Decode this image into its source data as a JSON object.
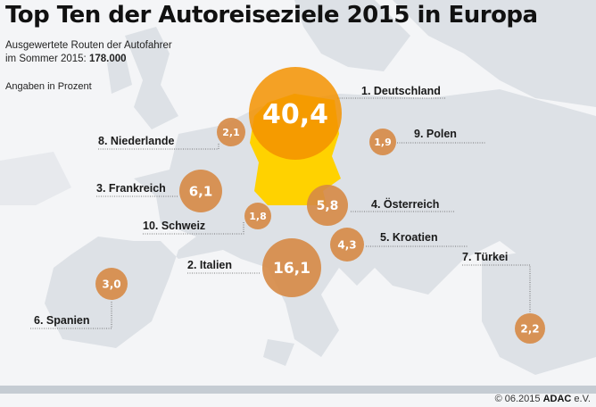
{
  "title": "Top Ten der Autoreiseziele 2015 in Europa",
  "subtitle_line1": "Ausgewertete Routen der Autofahrer",
  "subtitle_line2_prefix": "im Sommer 2015: ",
  "subtitle_total": "178.000",
  "unit_note": "Angaben in Prozent",
  "colors": {
    "bubble": "#d68a45",
    "top_bubble": "#f39200",
    "germany": "#ffd200",
    "land": "#dde1e6",
    "sea": "#f4f5f7"
  },
  "destinations": [
    {
      "label": "1. Deutschland",
      "value": "40,4"
    },
    {
      "label": "2. Italien",
      "value": "16,1"
    },
    {
      "label": "3. Frankreich",
      "value": "6,1"
    },
    {
      "label": "4. Österreich",
      "value": "5,8"
    },
    {
      "label": "5. Kroatien",
      "value": "4,3"
    },
    {
      "label": "6. Spanien",
      "value": "3,0"
    },
    {
      "label": "7. Türkei",
      "value": "2,2"
    },
    {
      "label": "8. Niederlande",
      "value": "2,1"
    },
    {
      "label": "9. Polen",
      "value": "1,9"
    },
    {
      "label": "10. Schweiz",
      "value": "1,8"
    }
  ],
  "footer": {
    "copyright": "© 06.2015 ",
    "brand": "ADAC",
    "suffix": " e.V."
  }
}
